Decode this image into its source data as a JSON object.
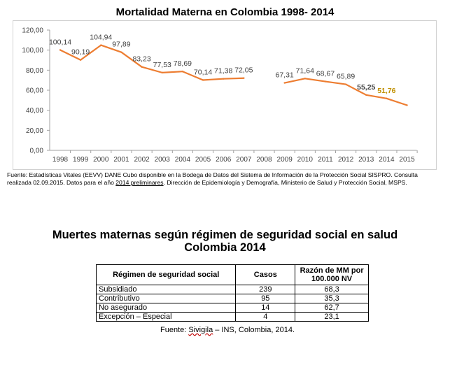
{
  "chart_title": "Mortalidad Materna en Colombia 1998- 2014",
  "chart_data": {
    "type": "line",
    "title": "Mortalidad Materna en Colombia 1998- 2014",
    "categories": [
      "1998",
      "1999",
      "2000",
      "2001",
      "2002",
      "2003",
      "2004",
      "2005",
      "2006",
      "2007",
      "2008",
      "2009",
      "2010",
      "2011",
      "2012",
      "2013",
      "2014",
      "2015"
    ],
    "values": [
      100.14,
      90.19,
      104.94,
      97.89,
      83.23,
      77.53,
      78.69,
      70.14,
      71.38,
      72.05,
      null,
      67.31,
      71.64,
      68.67,
      65.89,
      55.25,
      51.76,
      45.0
    ],
    "labels": [
      "100,14",
      "90,19",
      "104,94",
      "97,89",
      "83,23",
      "77,53",
      "78,69",
      "70,14",
      "71,38",
      "72,05",
      "",
      "67,31",
      "71,64",
      "68,67",
      "65,89",
      "55,25",
      "51,76",
      ""
    ],
    "label_styles": [
      "",
      "",
      "",
      "",
      "",
      "",
      "",
      "",
      "",
      "",
      "",
      "",
      "",
      "",
      "",
      "bold",
      "highlight",
      ""
    ],
    "ylim": [
      0,
      120
    ],
    "yticks": [
      "0,00",
      "20,00",
      "40,00",
      "60,00",
      "80,00",
      "100,00",
      "120,00"
    ],
    "grid": false,
    "line_color": "#ed7d31",
    "highlight_color": "#c09000",
    "axis_color": "#a0a0a0",
    "text_color": "#404040"
  },
  "chart_source": {
    "part1": "Fuente: Estadísticas Vitales (EEVV)  DANE Cubo disponible en la Bodega de Datos del Sistema de Información de la Protección Social SISPRO. Consulta realizada  02.09.2015.  Datos para el año ",
    "part2": "2014  preliminares",
    "part3": ".  Dirección de Epidemiología y Demografía, Ministerio de Salud y Protección Social, MSPS."
  },
  "table_title_line1": "Muertes maternas según régimen de seguridad social en salud",
  "table_title_line2": "Colombia 2014",
  "table": {
    "headers": [
      "Régimen de seguridad social",
      "Casos",
      "Razón de MM por 100.000 NV"
    ],
    "rows": [
      [
        "Subsidiado",
        "239",
        "68,3"
      ],
      [
        "Contributivo",
        "95",
        "35,3"
      ],
      [
        "No asegurado",
        "14",
        "62,7"
      ],
      [
        "Excepción – Especial",
        "4",
        "23,1"
      ]
    ]
  },
  "table_source": {
    "before": "Fuente: ",
    "squiggle": "Sivigila",
    "after": " – INS, Colombia, 2014."
  }
}
